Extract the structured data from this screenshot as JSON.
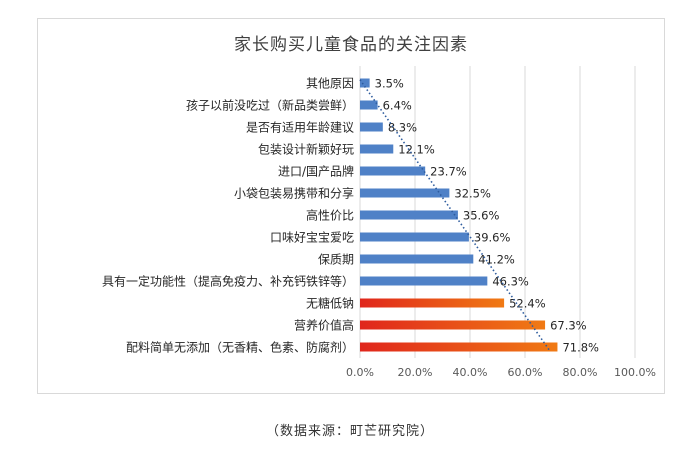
{
  "chart_data": {
    "type": "bar",
    "orientation": "horizontal",
    "title": "家长购买儿童食品的关注因素",
    "categories": [
      "其他原因",
      "孩子以前没吃过（新品类尝鲜）",
      "是否有适用年龄建议",
      "包装设计新颖好玩",
      "进口/国产品牌",
      "小袋包装易携带和分享",
      "高性价比",
      "口味好宝宝爱吃",
      "保质期",
      "具有一定功能性（提高免疫力、补充钙铁锌等）",
      "无糖低钠",
      "营养价值高",
      "配料简单无添加（无香精、色素、防腐剂）"
    ],
    "values": [
      3.5,
      6.4,
      8.3,
      12.1,
      23.7,
      32.5,
      35.6,
      39.6,
      41.2,
      46.3,
      52.4,
      67.3,
      71.8
    ],
    "value_labels": [
      "3.5%",
      "6.4%",
      "8.3%",
      "12.1%",
      "23.7%",
      "32.5%",
      "35.6%",
      "39.6%",
      "41.2%",
      "46.3%",
      "52.4%",
      "67.3%",
      "71.8%"
    ],
    "highlighted": [
      false,
      false,
      false,
      false,
      false,
      false,
      false,
      false,
      false,
      false,
      true,
      true,
      true
    ],
    "xlim": [
      0,
      100
    ],
    "xticks": [
      "0.0%",
      "20.0%",
      "40.0%",
      "60.0%",
      "80.0%",
      "100.0%"
    ],
    "trendline": "linear-dotted",
    "grid": true,
    "colors": {
      "bar": "#4f81c7",
      "highlight_start": "#e0261c",
      "highlight_end": "#f07a14",
      "grid": "#d9d9d9",
      "trendline": "#2e5c9e"
    }
  },
  "source": "（数据来源：町芒研究院）",
  "watermark": "町芒研究院"
}
